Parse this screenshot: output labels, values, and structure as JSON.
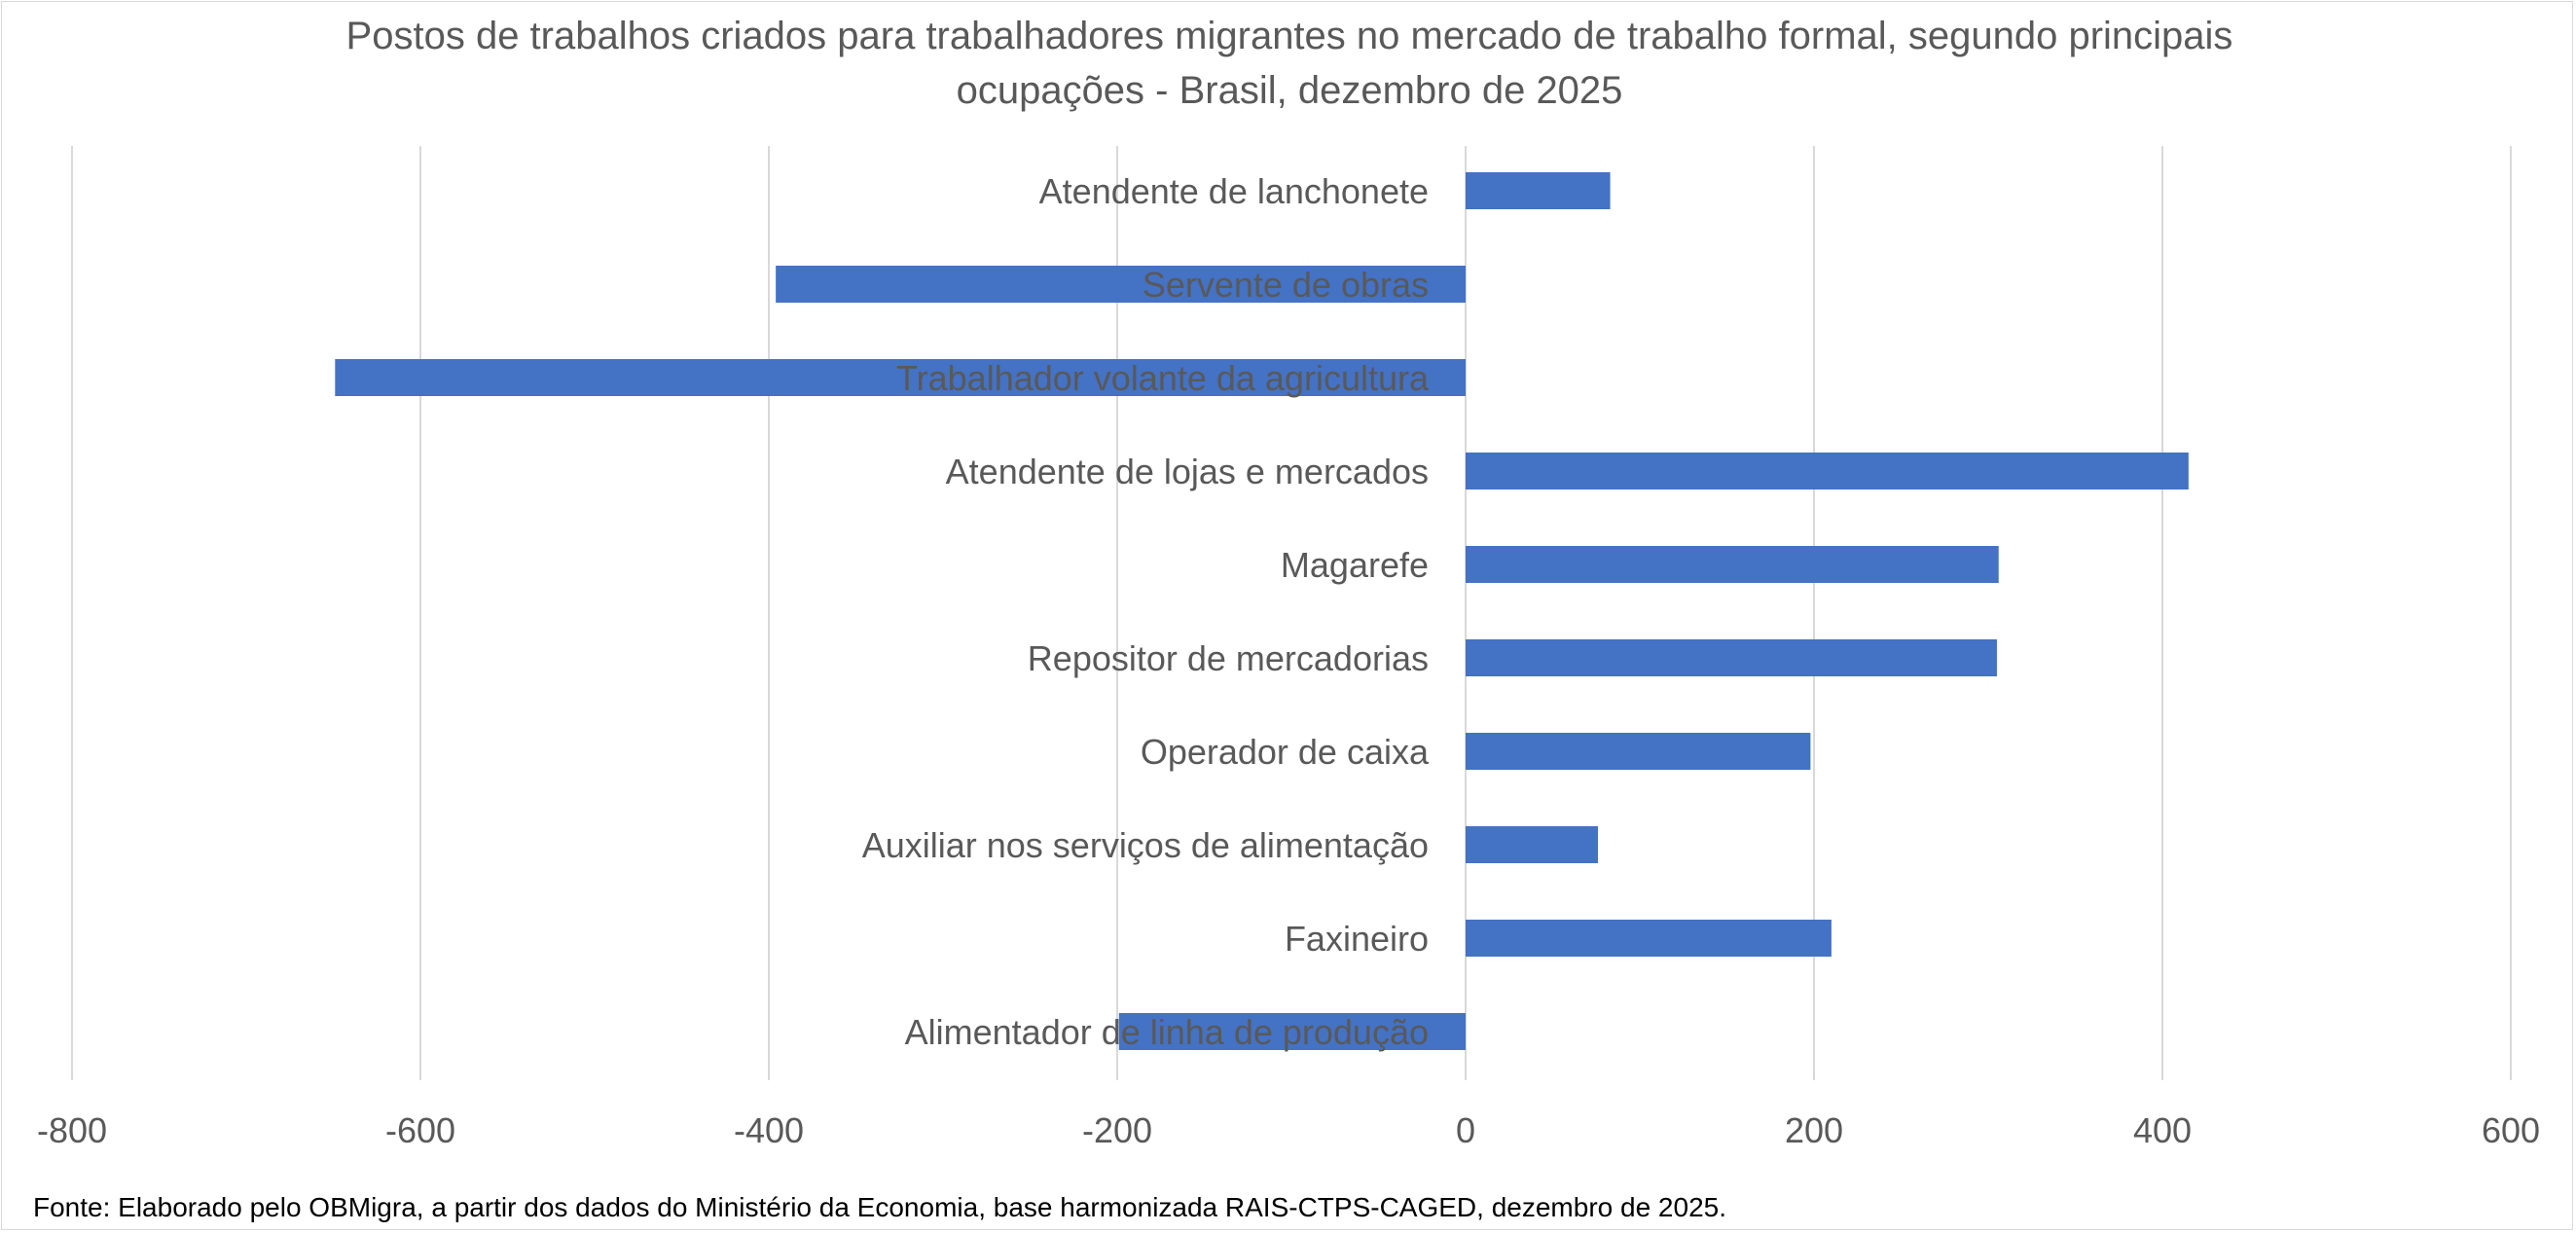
{
  "chart_data": {
    "type": "bar",
    "orientation": "horizontal",
    "title": "Postos de trabalhos criados para trabalhadores migrantes no mercado de trabalho formal,  segundo principais ocupações - Brasil, dezembro de 2025",
    "title_lines": [
      "Postos de trabalhos criados para trabalhadores migrantes no mercado de trabalho formal,  segundo principais",
      "ocupações - Brasil, dezembro de 2025"
    ],
    "categories": [
      "Atendente de lanchonete",
      "Servente de obras",
      "Trabalhador volante da agricultura",
      "Atendente de lojas e mercados",
      "Magarefe",
      "Repositor de mercadorias",
      "Operador de caixa",
      "Auxiliar nos serviços de alimentação",
      "Faxineiro",
      "Alimentador de linha de produção"
    ],
    "values": [
      83,
      -396,
      -649,
      415,
      306,
      305,
      198,
      76,
      210,
      -199
    ],
    "xlim": [
      -800,
      600
    ],
    "xticks": [
      "-800",
      "-600",
      "-400",
      "-200",
      "0",
      "200",
      "400",
      "600"
    ],
    "grid": true,
    "bar_color": "#4472C4",
    "xlabel": "",
    "ylabel": ""
  },
  "source_note": "Fonte: Elaborado pelo OBMigra,  a partir dos dados do Ministério da Economia, base harmonizada RAIS-CTPS-CAGED, dezembro de 2025."
}
